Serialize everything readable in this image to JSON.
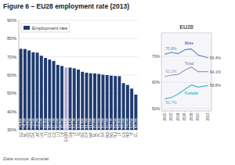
{
  "chart_data": [
    {
      "type": "bar",
      "title": "Figure 6 – EU28 employment rate (2013)",
      "annotations": [
        "Data source: Eurostat."
      ],
      "categories": [
        "SE",
        "NL",
        "DE",
        "DK",
        "AT",
        "UK",
        "FI",
        "EE",
        "CZ",
        "LU",
        "LV",
        "EU28",
        "DA",
        "LT",
        "IE",
        "BE",
        "CY",
        "MT",
        "NL",
        "PL",
        "SK",
        "RO",
        "BG",
        "HU",
        "LT",
        "ES",
        "HR",
        "IT",
        "EL"
      ],
      "series": [
        {
          "name": "Employment rate",
          "color": "#1f3a6e",
          "colors": [
            "#1f3a6e",
            "#1f3a6e",
            "#1f3a6e",
            "#1f3a6e",
            "#1f3a6e",
            "#1f3a6e",
            "#1f3a6e",
            "#1f3a6e",
            "#1f3a6e",
            "#1f3a6e",
            "#1f3a6e",
            "#b0aad0",
            "#1f3a6e",
            "#1f3a6e",
            "#1f3a6e",
            "#1f3a6e",
            "#1f3a6e",
            "#1f3a6e",
            "#1f3a6e",
            "#1f3a6e",
            "#1f3a6e",
            "#1f3a6e",
            "#1f3a6e",
            "#1f3a6e",
            "#1f3a6e",
            "#1f3a6e",
            "#1f3a6e",
            "#1f3a6e",
            "#1f3a6e"
          ],
          "values": [
            74.4,
            74.3,
            73.5,
            72.5,
            72.3,
            70.6,
            69.4,
            68.5,
            67.7,
            65.6,
            65.0,
            64.1,
            64.1,
            63.7,
            63.0,
            61.8,
            61.3,
            61.0,
            60.9,
            60.6,
            60.2,
            60.0,
            59.7,
            59.5,
            59.4,
            55.6,
            54.6,
            52.6,
            49.3
          ],
          "value_labels": [
            "74.4%",
            "74.3%",
            "73.5%",
            "72.5%",
            "72.3%",
            "70.6%",
            "69.4%",
            "68.5%",
            "67.7%",
            "65.6%",
            "65.0%",
            "64.1%",
            "64.1%",
            "63.7%",
            "63.0%",
            "61.8%",
            "61.3%",
            "61.0%",
            "60.9%",
            "60.6%",
            "60.2%",
            "60.0%",
            "59.7%",
            "59.5%",
            "59.4%",
            "55.6%",
            "54.6%",
            "52.6%",
            "49.3%"
          ]
        }
      ],
      "ylim": [
        30,
        90
      ],
      "yticks": [
        {
          "value": 30,
          "label": "30%"
        },
        {
          "value": 40,
          "label": "40%"
        },
        {
          "value": 50,
          "label": "50%"
        },
        {
          "value": 60,
          "label": "60%"
        },
        {
          "value": 70,
          "label": "70%"
        },
        {
          "value": 80,
          "label": "80%"
        },
        {
          "value": 90,
          "label": "90%"
        }
      ],
      "grid": true,
      "legend": "upper left",
      "data_labels": true
    },
    {
      "type": "line",
      "title": "EU28",
      "x": [
        2000,
        2002,
        2004,
        2006,
        2008,
        2010,
        2013
      ],
      "xlim": [
        1999,
        2014
      ],
      "xticks": [
        2000,
        2002,
        2004,
        2006,
        2008,
        2010,
        2013
      ],
      "ylim": [
        49,
        79
      ],
      "yticks": [
        {
          "value": 50,
          "label": "50%"
        },
        {
          "value": 60,
          "label": "60%"
        },
        {
          "value": 70,
          "label": "70%"
        }
      ],
      "grid": true,
      "data_labels": true,
      "series": [
        {
          "name": "Male",
          "color": "#6688bb",
          "values": [
            70.8,
            71.5,
            71.0,
            72.5,
            72.8,
            70.5,
            69.4
          ],
          "value_labels": [
            "70.8%",
            null,
            null,
            null,
            null,
            null,
            "69.4%"
          ]
        },
        {
          "name": "Total",
          "color": "#9999bb",
          "values": [
            62.2,
            62.8,
            63.0,
            64.7,
            65.9,
            64.1,
            64.1
          ],
          "value_labels": [
            "62.2%",
            null,
            null,
            null,
            null,
            null,
            "64.1%"
          ]
        },
        {
          "name": "Female",
          "color": "#44bbcc",
          "values": [
            53.7,
            54.2,
            55.5,
            57.3,
            59.0,
            58.2,
            58.8
          ],
          "value_labels": [
            "53.7%",
            null,
            null,
            null,
            null,
            null,
            "58.8%"
          ]
        }
      ]
    }
  ]
}
